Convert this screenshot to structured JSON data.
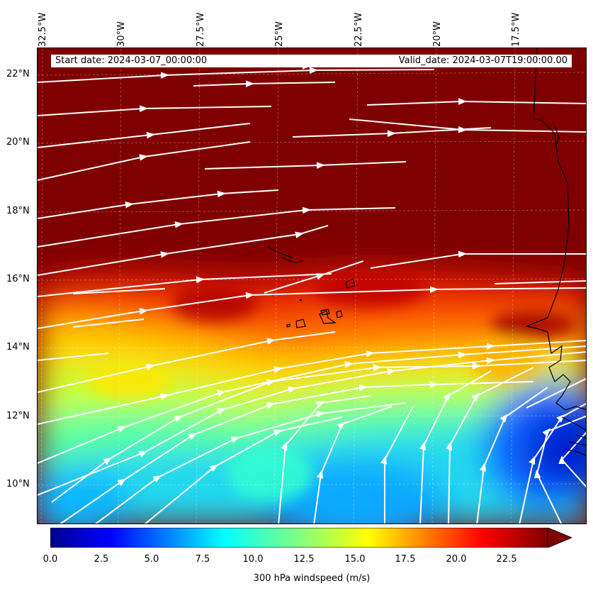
{
  "header": {
    "start_date": "Start date: 2024-03-07_00:00:00",
    "valid_date": "Valid_date: 2024-03-07T19:00:00.00"
  },
  "axes": {
    "lon_labels": [
      "32.5°W",
      "30°W",
      "27.5°W",
      "25°W",
      "22.5°W",
      "20°W",
      "17.5°W"
    ],
    "lat_labels": [
      "22°N",
      "20°N",
      "18°N",
      "16°N",
      "14°N",
      "12°N",
      "10°N"
    ]
  },
  "colorbar": {
    "label": "300 hPa windspeed (m/s)",
    "ticks": [
      "0.0",
      "2.5",
      "5.0",
      "7.5",
      "10.0",
      "12.5",
      "15.0",
      "17.5",
      "20.0",
      "22.5"
    ],
    "range": [
      0,
      25
    ],
    "extend": "max",
    "colormap": "jet"
  },
  "colors": {
    "max_speed": "#7f0000",
    "streamline": "#ffffff",
    "coastline": "#000000"
  }
}
